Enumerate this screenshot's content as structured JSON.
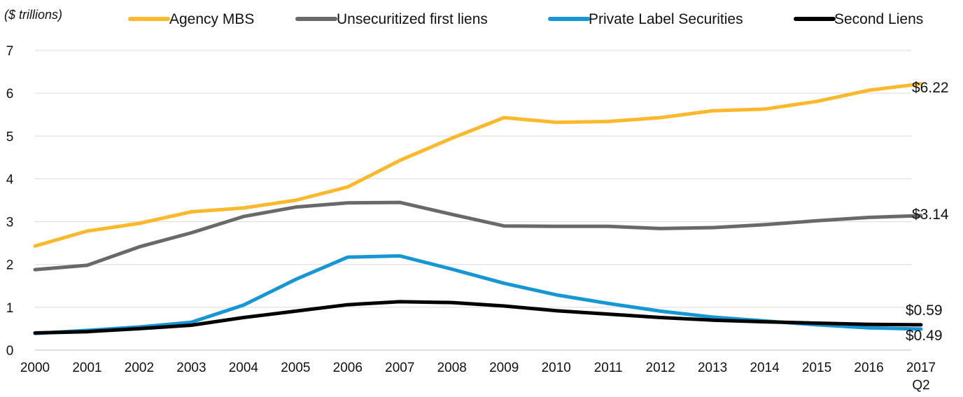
{
  "chart_data": {
    "type": "line",
    "unit_label": "($ trillions)",
    "categories": [
      "2000",
      "2001",
      "2002",
      "2003",
      "2004",
      "2005",
      "2006",
      "2007",
      "2008",
      "2009",
      "2010",
      "2011",
      "2012",
      "2013",
      "2014",
      "2015",
      "2016",
      "2017"
    ],
    "last_category_sublabel": "Q2",
    "ylim": [
      0,
      7
    ],
    "yticks": [
      "0",
      "1",
      "2",
      "3",
      "4",
      "5",
      "6",
      "7"
    ],
    "grid": true,
    "legend_position": "top",
    "series": [
      {
        "name": "Agency MBS",
        "color": "#fdb82b",
        "values": [
          2.43,
          2.78,
          2.96,
          3.23,
          3.32,
          3.5,
          3.81,
          4.43,
          4.95,
          5.43,
          5.32,
          5.34,
          5.43,
          5.59,
          5.63,
          5.81,
          6.07,
          6.22
        ],
        "end_label": "$6.22"
      },
      {
        "name": "Unsecuritized first liens",
        "color": "#696969",
        "values": [
          1.88,
          1.98,
          2.41,
          2.74,
          3.12,
          3.34,
          3.44,
          3.45,
          3.17,
          2.9,
          2.89,
          2.89,
          2.84,
          2.86,
          2.93,
          3.02,
          3.1,
          3.14
        ],
        "end_label": "$3.14"
      },
      {
        "name": "Private Label Securities",
        "color": "#1696d2",
        "values": [
          0.39,
          0.46,
          0.54,
          0.65,
          1.05,
          1.65,
          2.17,
          2.2,
          1.89,
          1.56,
          1.29,
          1.09,
          0.91,
          0.77,
          0.68,
          0.59,
          0.52,
          0.49
        ],
        "end_label": "$0.49"
      },
      {
        "name": "Second Liens",
        "color": "#000000",
        "values": [
          0.4,
          0.43,
          0.5,
          0.58,
          0.76,
          0.91,
          1.06,
          1.13,
          1.11,
          1.03,
          0.92,
          0.84,
          0.76,
          0.7,
          0.66,
          0.63,
          0.6,
          0.59
        ],
        "end_label": "$0.59"
      }
    ]
  }
}
